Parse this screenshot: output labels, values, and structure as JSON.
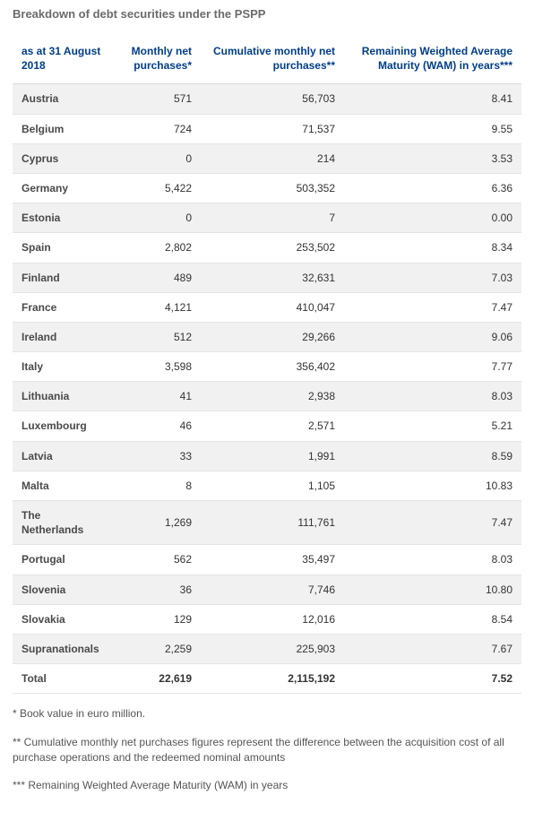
{
  "title": "Breakdown of debt securities under the PSPP",
  "table": {
    "type": "table",
    "header_color": "#003e8a",
    "row_odd_bg": "#f1f1f1",
    "row_even_bg": "#ffffff",
    "border_color": "#e4e4e4",
    "font_size": 12,
    "columns": {
      "c0": "as at\n31 August 2018",
      "c1": "Monthly net purchases*",
      "c2": "Cumulative monthly net purchases**",
      "c3": "Remaining Weighted Average Maturity (WAM) in years***"
    },
    "rows": [
      {
        "c0": "Austria",
        "c1": "571",
        "c2": "56,703",
        "c3": "8.41"
      },
      {
        "c0": "Belgium",
        "c1": "724",
        "c2": "71,537",
        "c3": "9.55"
      },
      {
        "c0": "Cyprus",
        "c1": "0",
        "c2": "214",
        "c3": "3.53"
      },
      {
        "c0": "Germany",
        "c1": "5,422",
        "c2": "503,352",
        "c3": "6.36"
      },
      {
        "c0": "Estonia",
        "c1": "0",
        "c2": "7",
        "c3": "0.00"
      },
      {
        "c0": "Spain",
        "c1": "2,802",
        "c2": "253,502",
        "c3": "8.34"
      },
      {
        "c0": "Finland",
        "c1": "489",
        "c2": "32,631",
        "c3": "7.03"
      },
      {
        "c0": "France",
        "c1": "4,121",
        "c2": "410,047",
        "c3": "7.47"
      },
      {
        "c0": "Ireland",
        "c1": "512",
        "c2": "29,266",
        "c3": "9.06"
      },
      {
        "c0": "Italy",
        "c1": "3,598",
        "c2": "356,402",
        "c3": "7.77"
      },
      {
        "c0": "Lithuania",
        "c1": "41",
        "c2": "2,938",
        "c3": "8.03"
      },
      {
        "c0": "Luxembourg",
        "c1": "46",
        "c2": "2,571",
        "c3": "5.21"
      },
      {
        "c0": "Latvia",
        "c1": "33",
        "c2": "1,991",
        "c3": "8.59"
      },
      {
        "c0": "Malta",
        "c1": "8",
        "c2": "1,105",
        "c3": "10.83"
      },
      {
        "c0": "The Netherlands",
        "c1": "1,269",
        "c2": "111,761",
        "c3": "7.47"
      },
      {
        "c0": "Portugal",
        "c1": "562",
        "c2": "35,497",
        "c3": "8.03"
      },
      {
        "c0": "Slovenia",
        "c1": "36",
        "c2": "7,746",
        "c3": "10.80"
      },
      {
        "c0": "Slovakia",
        "c1": "129",
        "c2": "12,016",
        "c3": "8.54"
      },
      {
        "c0": "Supranationals",
        "c1": "2,259",
        "c2": "225,903",
        "c3": "7.67"
      },
      {
        "c0": "Total",
        "c1": "22,619",
        "c2": "2,115,192",
        "c3": "7.52",
        "total": true
      }
    ]
  },
  "footnotes": {
    "f1": "* Book value in euro million.",
    "f2": "** Cumulative monthly net purchases figures represent the difference between the acquisition cost of all purchase operations and the redeemed nominal amounts",
    "f3": "*** Remaining Weighted Average Maturity (WAM) in years"
  }
}
